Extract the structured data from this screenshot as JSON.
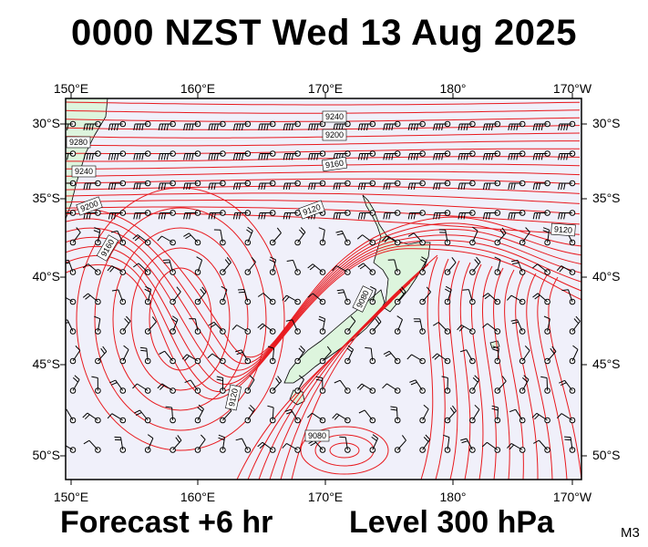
{
  "title": "0000 NZST Wed 13 Aug 2025",
  "footer": {
    "forecast": "Forecast +6 hr",
    "level": "Level 300 hPa",
    "model_code": "M3"
  },
  "axes": {
    "longitude_ticks": [
      "150°E",
      "160°E",
      "170°E",
      "180°",
      "170°W"
    ],
    "latitude_ticks": [
      "30°S",
      "35°S",
      "40°S",
      "45°S",
      "50°S"
    ]
  },
  "contour_labels": [
    "9280",
    "9240",
    "9200",
    "9160",
    "9120",
    "9080",
    "9240",
    "9200",
    "9160",
    "9120",
    "9120",
    "9080"
  ],
  "colors": {
    "ocean": "#f0f0fa",
    "land": "#ddf5dd",
    "contour": "#e8191e",
    "wind": "#000000"
  }
}
